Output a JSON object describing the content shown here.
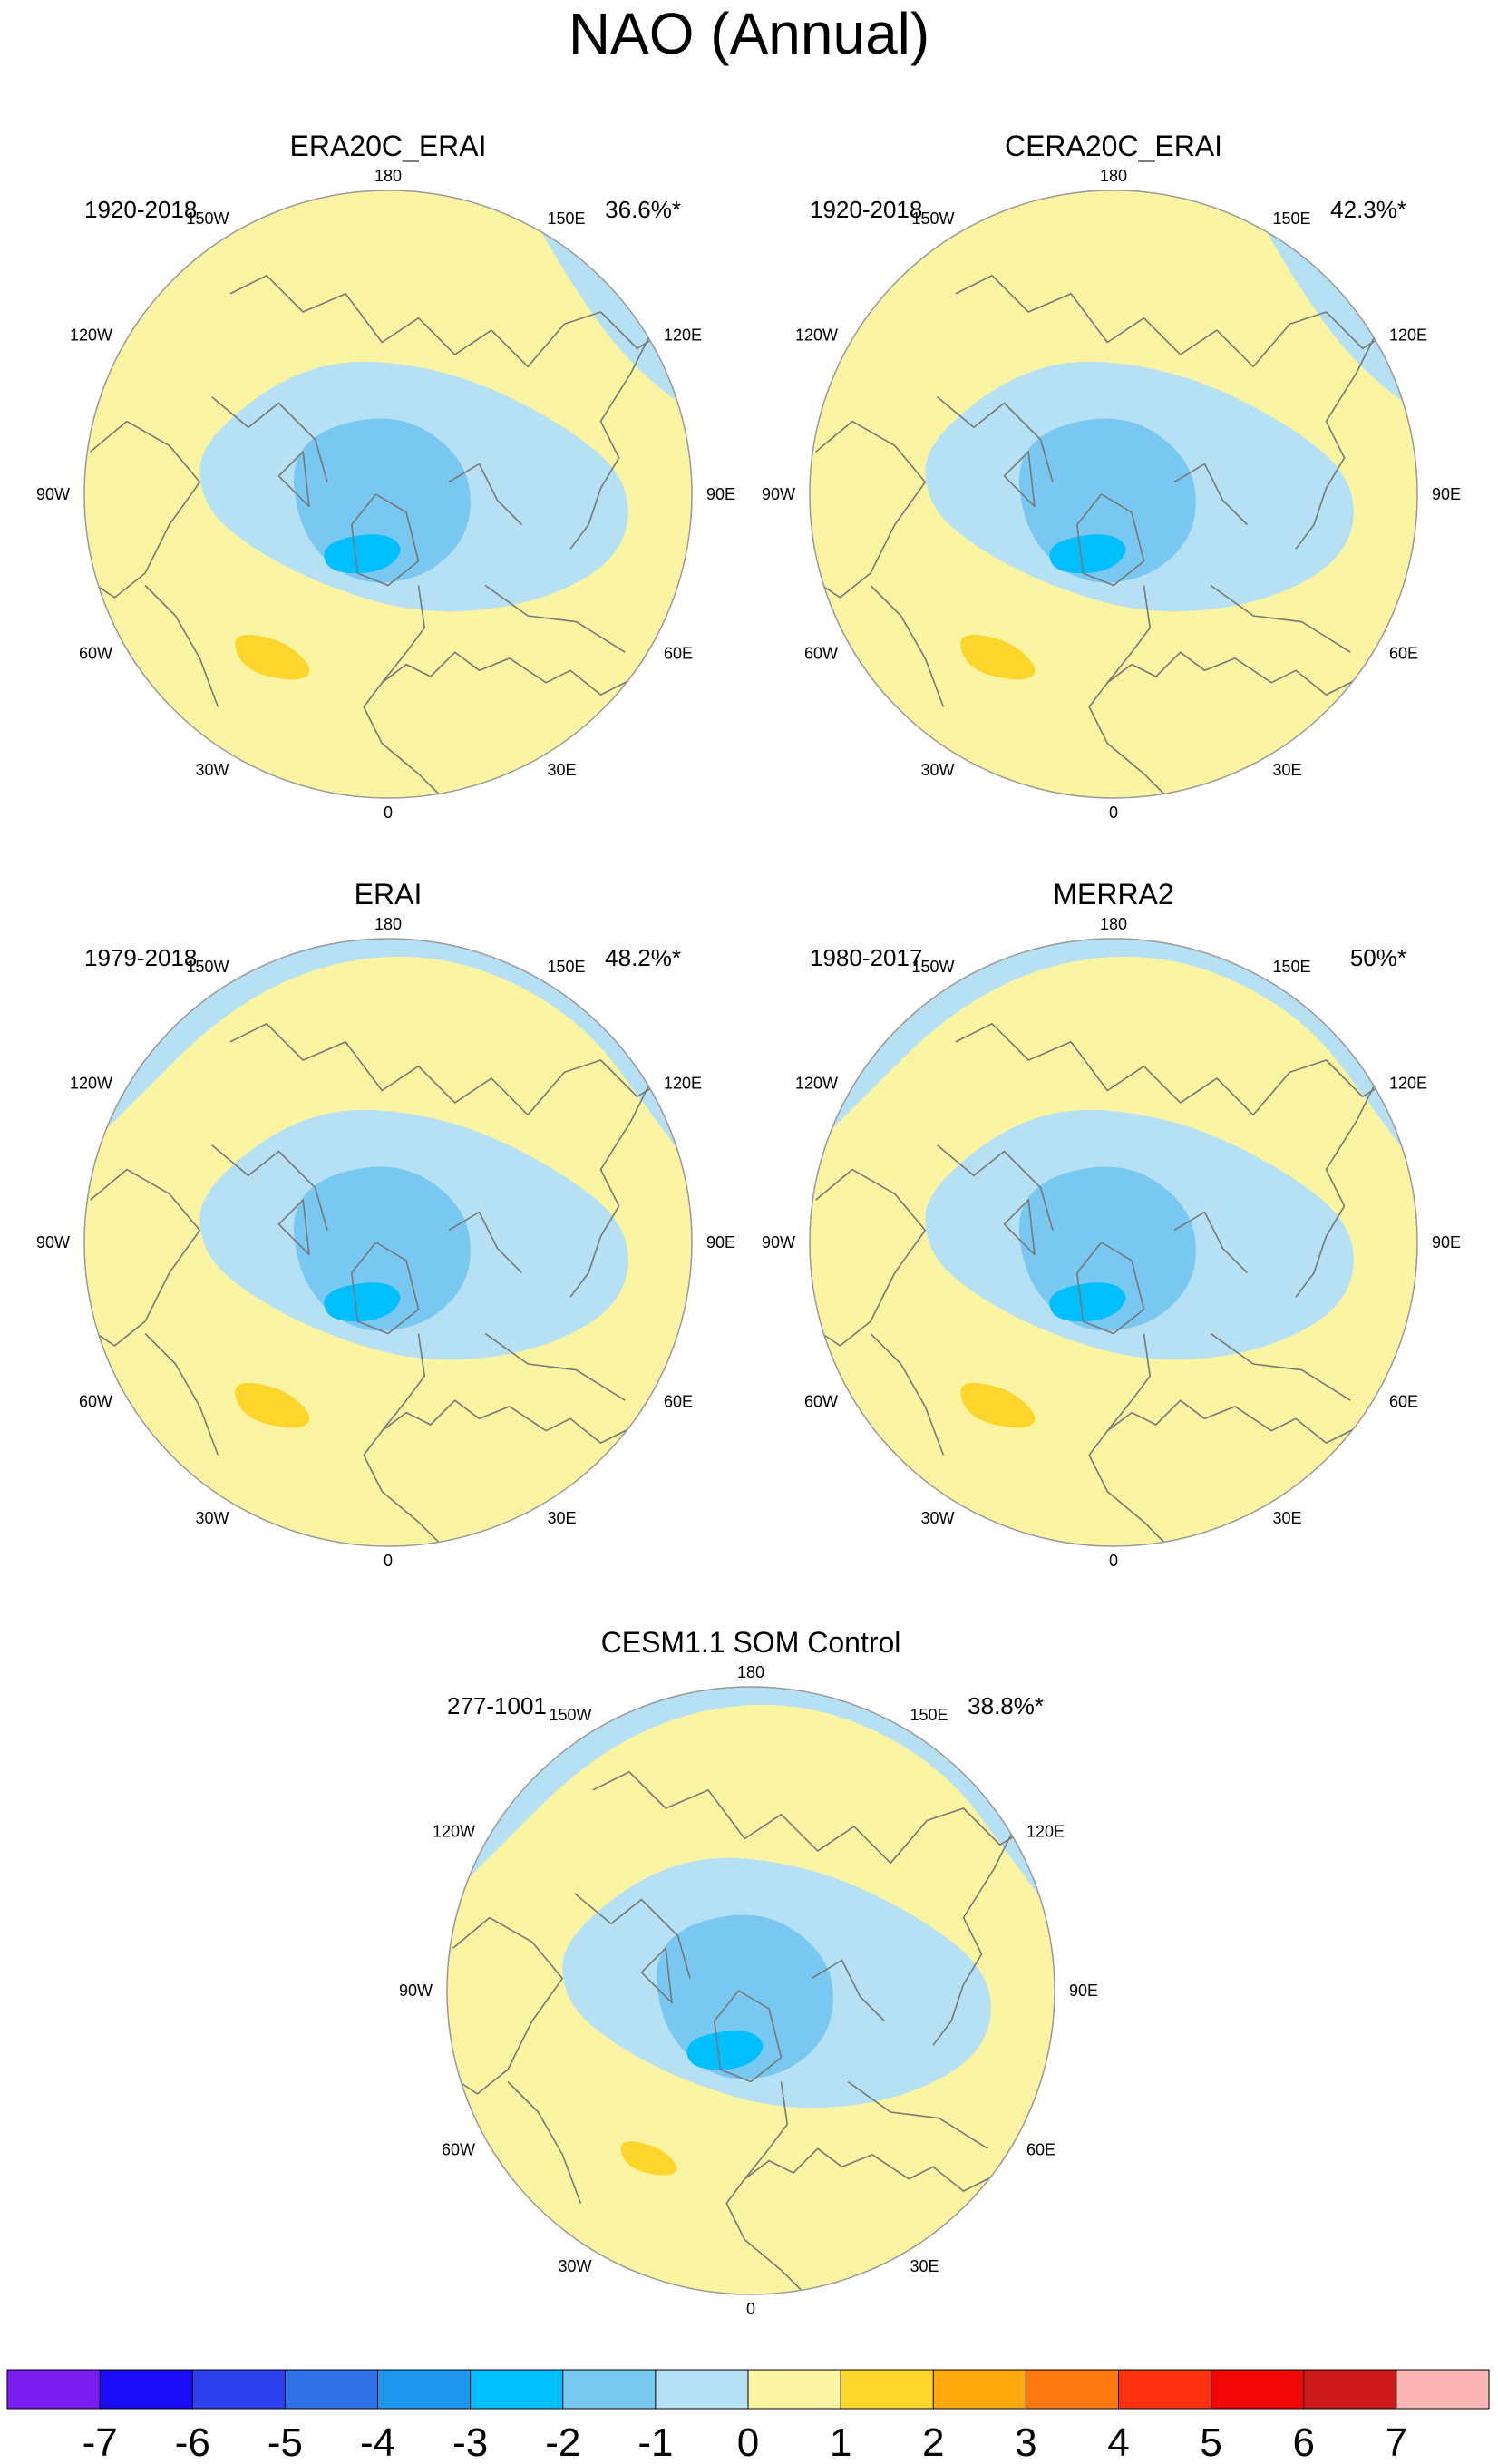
{
  "figure": {
    "title": "NAO (Annual)",
    "lon_labels": [
      "180",
      "150E",
      "120E",
      "90E",
      "60E",
      "30E",
      "0",
      "30W",
      "60W",
      "90W",
      "120W",
      "150W"
    ]
  },
  "chart_data": [
    {
      "type": "polar_map",
      "title": "ERA20C_ERAI",
      "period": "1920-2018",
      "variance_explained": "36.6%*"
    },
    {
      "type": "polar_map",
      "title": "CERA20C_ERAI",
      "period": "1920-2018",
      "variance_explained": "42.3%*"
    },
    {
      "type": "polar_map",
      "title": "ERAI",
      "period": "1979-2018",
      "variance_explained": "48.2%*"
    },
    {
      "type": "polar_map",
      "title": "MERRA2",
      "period": "1980-2017",
      "variance_explained": "50%*"
    },
    {
      "type": "polar_map",
      "title": "CESM1.1 SOM Control",
      "period": "277-1001",
      "variance_explained": "38.8%*"
    }
  ],
  "colorbar": {
    "labels": [
      "-7",
      "-6",
      "-5",
      "-4",
      "-3",
      "-2",
      "-1",
      "0",
      "1",
      "2",
      "3",
      "4",
      "5",
      "6",
      "7"
    ],
    "colors": [
      "#7a1df0",
      "#1a0cf7",
      "#2c40ec",
      "#3171e8",
      "#1e98ef",
      "#00bfff",
      "#78c8f2",
      "#b6e0f4",
      "#fbf5a3",
      "#fed52a",
      "#fda90b",
      "#fd7910",
      "#fe3110",
      "#f20707",
      "#cc1a1a",
      "#fbb5b5"
    ]
  },
  "colors": {
    "land_outline": "#777777",
    "circle_border": "#999999"
  }
}
